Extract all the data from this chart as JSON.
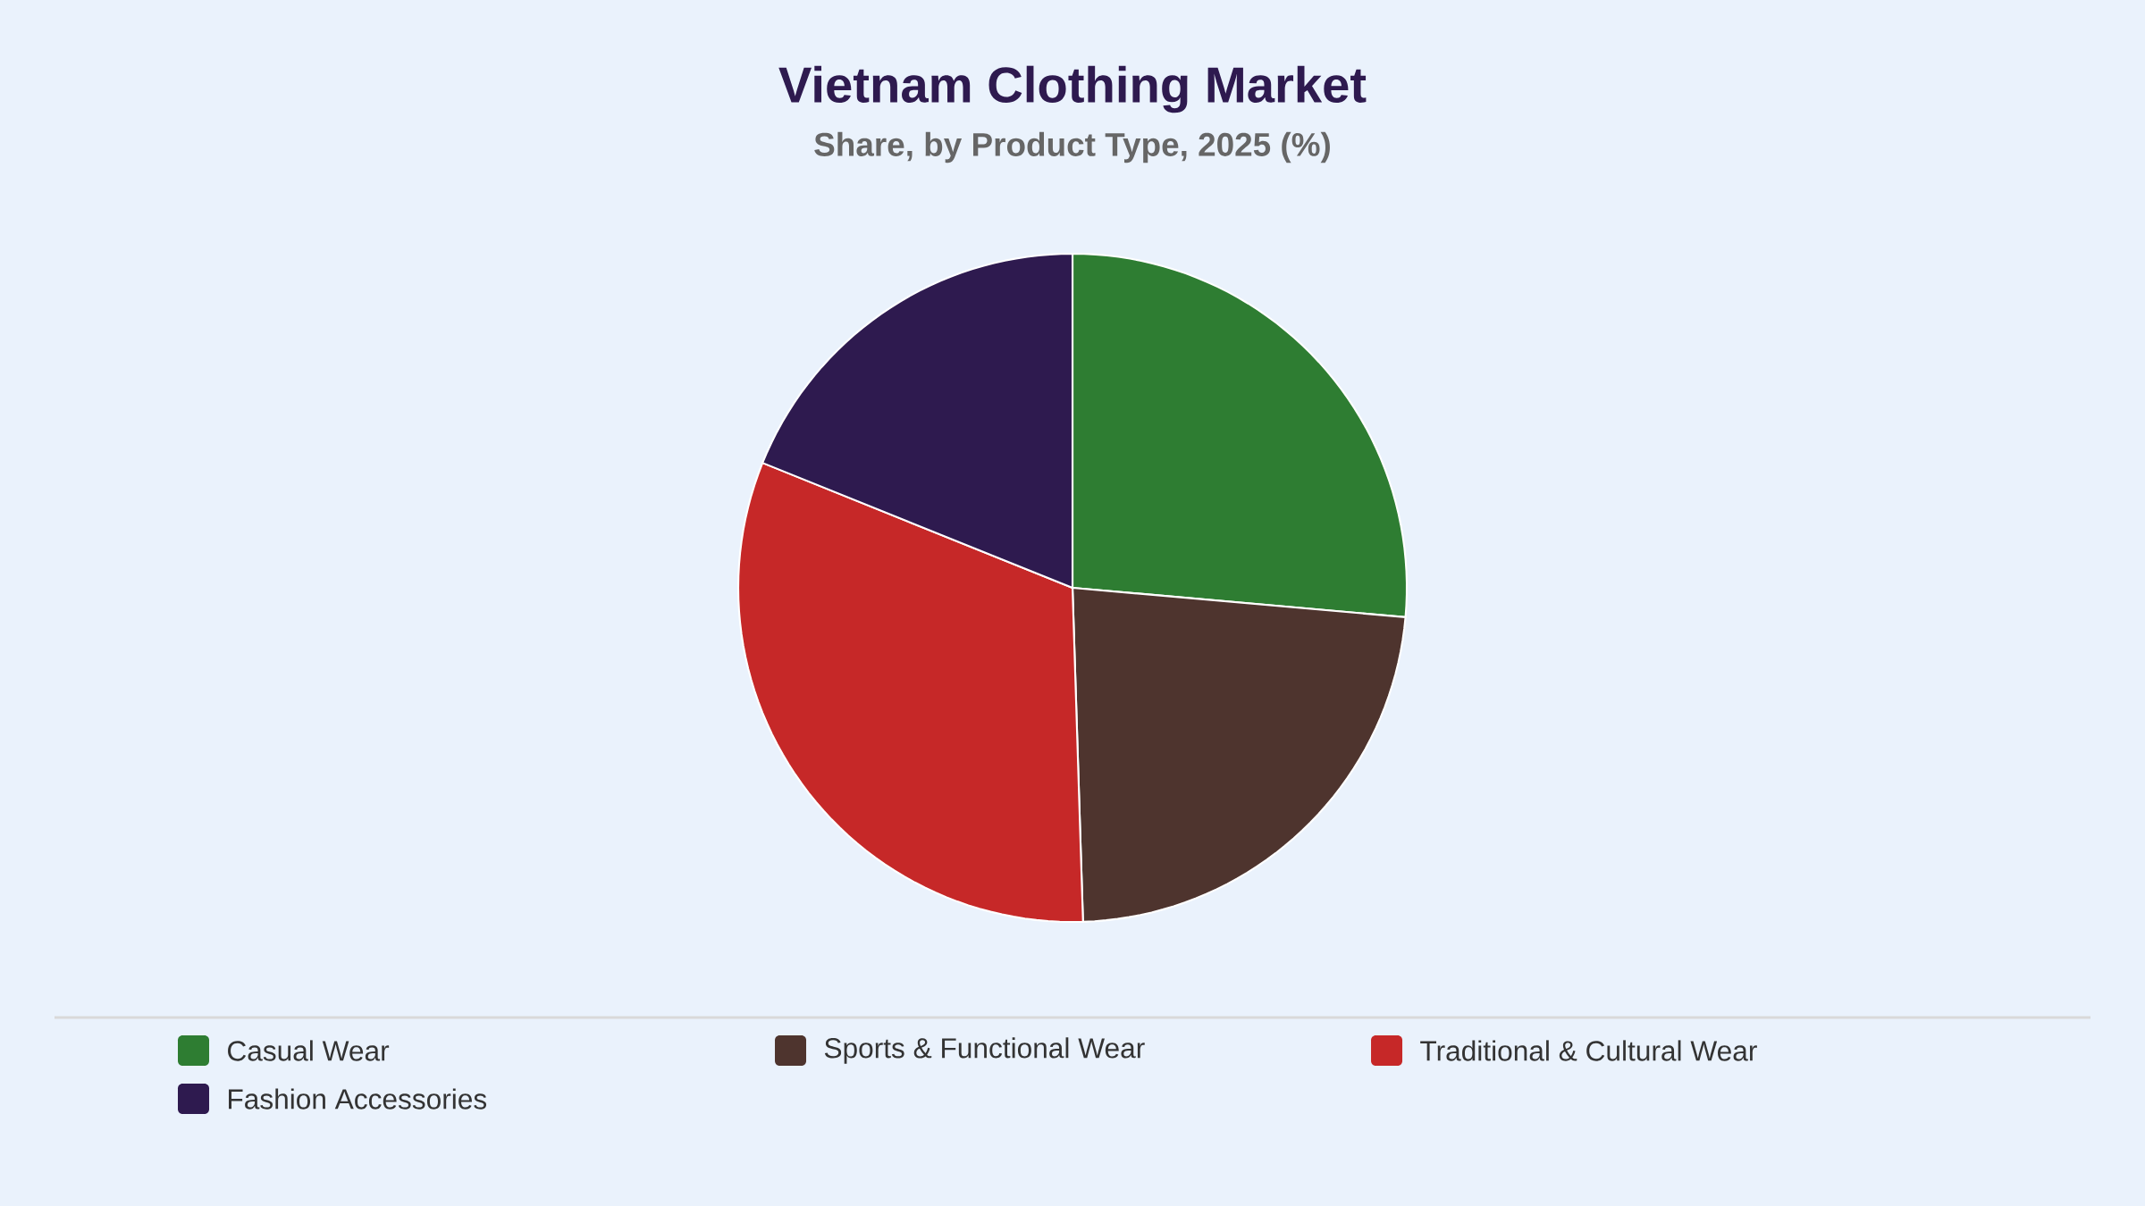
{
  "chart_data": {
    "type": "pie",
    "title": "Vietnam Clothing Market",
    "subtitle": "Share, by Product Type, 2025 (%)",
    "categories": [
      "Casual Wear",
      "Sports & Functional Wear",
      "Traditional & Cultural Wear",
      "Fashion Accessories"
    ],
    "values": [
      26.4,
      23.1,
      31.6,
      18.9
    ],
    "colors": [
      "#2e7d32",
      "#4e342e",
      "#c62828",
      "#2e1a4f"
    ],
    "legend": "bottom"
  }
}
